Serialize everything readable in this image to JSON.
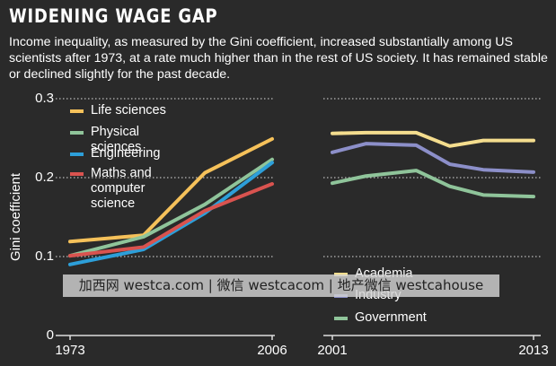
{
  "chart_data": [
    {
      "type": "line",
      "title": "WIDENING WAGE GAP",
      "subtitle": "Income inequality, as measured by the Gini coefficient, increased substantially among US scientists after 1973, at a rate much higher than in the rest of US society. It has remained stable or declined slightly for the past decade.",
      "ylabel": "Gini coefficient",
      "x": [
        1973,
        1985,
        1995,
        2006
      ],
      "series": [
        {
          "name": "Life sciences",
          "color": "#f5c15a",
          "values": [
            0.119,
            0.127,
            0.206,
            0.249
          ]
        },
        {
          "name": "Physical sciences",
          "color": "#8fc49a",
          "values": [
            0.101,
            0.125,
            0.166,
            0.223
          ]
        },
        {
          "name": "Engineering",
          "color": "#2d9fd9",
          "values": [
            0.09,
            0.109,
            0.155,
            0.219
          ]
        },
        {
          "name": "Maths and computer science",
          "color": "#d9534f",
          "values": [
            0.101,
            0.112,
            0.158,
            0.192
          ]
        }
      ],
      "xlim": [
        1973,
        2006
      ],
      "xticks": [
        1973,
        2006
      ],
      "ylim": [
        0,
        0.3
      ],
      "yticks": [
        0,
        0.1,
        0.2,
        0.3
      ],
      "grid": true
    },
    {
      "type": "line",
      "x": [
        2001,
        2003,
        2006,
        2008,
        2010,
        2013
      ],
      "series": [
        {
          "name": "Academia",
          "color": "#f4dd8e",
          "values": [
            0.256,
            0.257,
            0.257,
            0.24,
            0.247,
            0.247
          ]
        },
        {
          "name": "Industry",
          "color": "#8c8fc9",
          "values": [
            0.232,
            0.243,
            0.241,
            0.217,
            0.21,
            0.207
          ]
        },
        {
          "name": "Government",
          "color": "#8fc49a",
          "values": [
            0.193,
            0.202,
            0.209,
            0.189,
            0.178,
            0.176
          ]
        }
      ],
      "xlim": [
        2001,
        2013
      ],
      "xticks": [
        2001,
        2013
      ],
      "ylim": [
        0,
        0.3
      ],
      "grid": true
    }
  ],
  "watermark": "加西网 westca.com | 微信 westcacom | 地产微信 westcahouse"
}
